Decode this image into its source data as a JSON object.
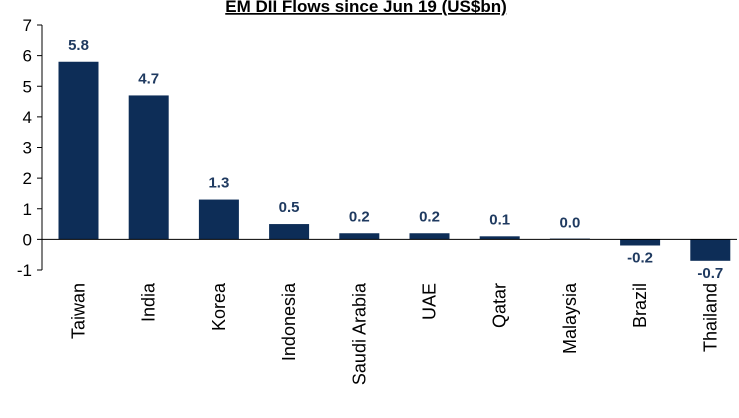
{
  "chart_data": {
    "type": "bar",
    "title": "EM DII Flows since Jun 19 (US$bn)",
    "categories": [
      "Taiwan",
      "India",
      "Korea",
      "Indonesia",
      "Saudi Arabia",
      "UAE",
      "Qatar",
      "Malaysia",
      "Brazil",
      "Thailand"
    ],
    "values": [
      5.8,
      4.7,
      1.3,
      0.5,
      0.2,
      0.2,
      0.1,
      0.0,
      -0.2,
      -0.7
    ],
    "data_labels": [
      "5.8",
      "4.7",
      "1.3",
      "0.5",
      "0.2",
      "0.2",
      "0.1",
      "0.0",
      "-0.2",
      "-0.7"
    ],
    "ylim": [
      -1,
      7
    ],
    "yticks": [
      "-1",
      "0",
      "1",
      "2",
      "3",
      "4",
      "5",
      "6",
      "7"
    ],
    "xlabel": "",
    "ylabel": "",
    "grid": false,
    "legend": "none",
    "bar_color": "#0d2d57"
  }
}
